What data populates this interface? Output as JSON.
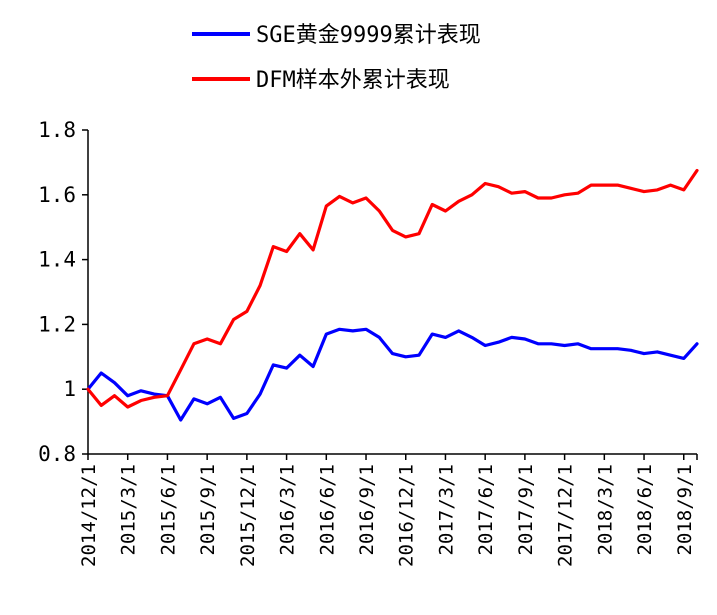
{
  "chart_data": {
    "type": "line",
    "title": "",
    "xlabel": "",
    "ylabel": "",
    "ylim": [
      0.8,
      1.8
    ],
    "y_ticks": [
      0.8,
      1.0,
      1.2,
      1.4,
      1.6,
      1.8
    ],
    "y_tick_labels": [
      "0.8",
      "1",
      "1.2",
      "1.4",
      "1.6",
      "1.8"
    ],
    "grid": false,
    "legend_position": "top",
    "x": [
      "2014/12/1",
      "2015/1/1",
      "2015/2/1",
      "2015/3/1",
      "2015/4/1",
      "2015/5/1",
      "2015/6/1",
      "2015/7/1",
      "2015/8/1",
      "2015/9/1",
      "2015/10/1",
      "2015/11/1",
      "2015/12/1",
      "2016/1/1",
      "2016/2/1",
      "2016/3/1",
      "2016/4/1",
      "2016/5/1",
      "2016/6/1",
      "2016/7/1",
      "2016/8/1",
      "2016/9/1",
      "2016/10/1",
      "2016/11/1",
      "2016/12/1",
      "2017/1/1",
      "2017/2/1",
      "2017/3/1",
      "2017/4/1",
      "2017/5/1",
      "2017/6/1",
      "2017/7/1",
      "2017/8/1",
      "2017/9/1",
      "2017/10/1",
      "2017/11/1",
      "2017/12/1",
      "2018/1/1",
      "2018/2/1",
      "2018/3/1",
      "2018/4/1",
      "2018/5/1",
      "2018/6/1",
      "2018/7/1",
      "2018/8/1",
      "2018/9/1",
      "2018/10/1"
    ],
    "x_tick_labels": [
      "2014/12/1",
      "2015/3/1",
      "2015/6/1",
      "2015/9/1",
      "2015/12/1",
      "2016/3/1",
      "2016/6/1",
      "2016/9/1",
      "2016/12/1",
      "2017/3/1",
      "2017/6/1",
      "2017/9/1",
      "2017/12/1",
      "2018/3/1",
      "2018/6/1",
      "2018/9/1"
    ],
    "series": [
      {
        "name": "SGE黄金9999累计表现",
        "color": "#0000ff",
        "values": [
          1.0,
          1.05,
          1.02,
          0.98,
          0.995,
          0.985,
          0.98,
          0.905,
          0.97,
          0.955,
          0.975,
          0.91,
          0.925,
          0.985,
          1.075,
          1.065,
          1.105,
          1.07,
          1.17,
          1.185,
          1.18,
          1.185,
          1.16,
          1.11,
          1.1,
          1.105,
          1.17,
          1.16,
          1.18,
          1.16,
          1.135,
          1.145,
          1.16,
          1.155,
          1.14,
          1.14,
          1.135,
          1.14,
          1.125,
          1.125,
          1.125,
          1.12,
          1.11,
          1.115,
          1.105,
          1.095,
          1.14
        ]
      },
      {
        "name": "DFM样本外累计表现",
        "color": "#ff0000",
        "values": [
          1.0,
          0.95,
          0.98,
          0.945,
          0.965,
          0.975,
          0.98,
          1.06,
          1.14,
          1.155,
          1.14,
          1.215,
          1.24,
          1.32,
          1.44,
          1.425,
          1.48,
          1.43,
          1.565,
          1.595,
          1.575,
          1.59,
          1.55,
          1.49,
          1.47,
          1.48,
          1.57,
          1.55,
          1.58,
          1.6,
          1.635,
          1.625,
          1.605,
          1.61,
          1.59,
          1.59,
          1.6,
          1.605,
          1.63,
          1.63,
          1.63,
          1.62,
          1.61,
          1.615,
          1.63,
          1.615,
          1.675
        ]
      }
    ]
  }
}
